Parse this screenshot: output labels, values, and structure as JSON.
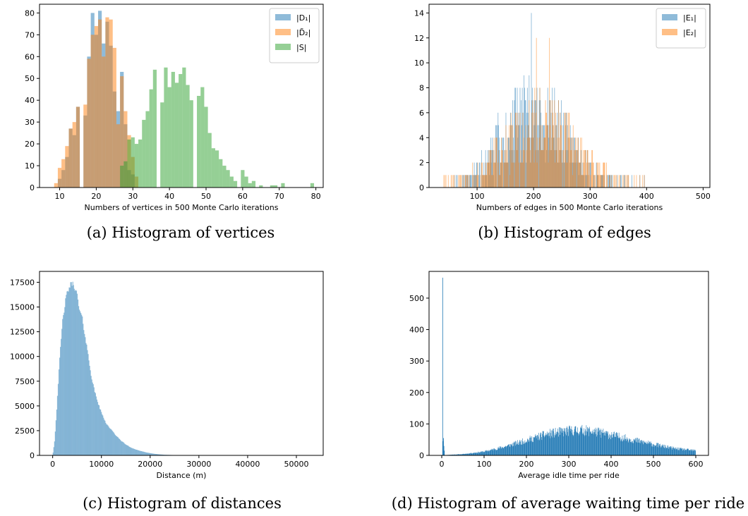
{
  "colors": {
    "blue": "#1f77b4",
    "orange": "#ff7f0e",
    "green": "#2ca02c"
  },
  "captions": [
    "(a) Histogram of vertices",
    "(b) Histogram of edges",
    "(c) Histogram of distances",
    "(d) Histogram of average waiting time per ride"
  ],
  "chart_data": [
    {
      "type": "bar",
      "subtype": "histogram-overlay",
      "xlabel": "Numbers of vertices in 500 Monte Carlo iterations",
      "ylabel": "",
      "xlim": [
        4.5,
        82
      ],
      "ylim": [
        0,
        84
      ],
      "xticks": [
        10,
        20,
        30,
        40,
        50,
        60,
        70,
        80
      ],
      "yticks": [
        0,
        10,
        20,
        30,
        40,
        50,
        60,
        70,
        80
      ],
      "legend_position": "top-right",
      "series": [
        {
          "name": "|D1|",
          "legend_label": "|D₁|",
          "color": "#1f77b4",
          "alpha": 0.5,
          "bin_width": 1,
          "x": [
            10,
            11,
            12,
            13,
            14,
            15,
            16,
            17,
            18,
            19,
            20,
            21,
            22,
            23,
            24,
            25,
            26,
            27,
            28,
            29,
            30
          ],
          "values": [
            4,
            8,
            14,
            27,
            24,
            37,
            0,
            33,
            60,
            80,
            70,
            81,
            66,
            76,
            65,
            44,
            35,
            53,
            29,
            8,
            6
          ]
        },
        {
          "name": "|D̃2|",
          "legend_label": "|D̃₂|",
          "color": "#ff7f0e",
          "alpha": 0.5,
          "bin_width": 1,
          "x": [
            9,
            10,
            11,
            12,
            13,
            14,
            15,
            16,
            17,
            18,
            19,
            20,
            21,
            22,
            23,
            24,
            25,
            26,
            27,
            28,
            29,
            30,
            31
          ],
          "values": [
            2,
            9,
            13,
            19,
            27,
            30,
            37,
            0,
            38,
            59,
            70,
            74,
            77,
            60,
            78,
            77,
            64,
            29,
            51,
            35,
            24,
            14,
            5
          ]
        },
        {
          "name": "|S|",
          "legend_label": "|S|",
          "color": "#2ca02c",
          "alpha": 0.5,
          "bin_width": 1,
          "x": [
            27,
            28,
            29,
            30,
            31,
            32,
            33,
            34,
            35,
            36,
            37,
            38,
            39,
            40,
            41,
            42,
            43,
            44,
            45,
            46,
            47,
            48,
            49,
            50,
            51,
            52,
            53,
            54,
            55,
            56,
            57,
            58,
            59,
            60,
            61,
            62,
            63,
            64,
            65,
            66,
            67,
            68,
            69,
            70,
            71,
            72,
            73,
            74,
            75,
            76,
            77,
            78,
            79,
            80
          ],
          "values": [
            10,
            12,
            22,
            23,
            20,
            22,
            31,
            35,
            45,
            54,
            0,
            39,
            55,
            46,
            53,
            48,
            52,
            55,
            47,
            40,
            0,
            42,
            46,
            37,
            25,
            18,
            17,
            13,
            10,
            8,
            5,
            3,
            0,
            8,
            5,
            2,
            3,
            0,
            1,
            0,
            0,
            1,
            1,
            0,
            2,
            0,
            0,
            0,
            0,
            0,
            0,
            0,
            2,
            0
          ]
        }
      ]
    },
    {
      "type": "bar",
      "subtype": "histogram-overlay",
      "xlabel": "Numbers of edges in 500 Monte Carlo iterations",
      "ylabel": "",
      "xlim": [
        15,
        512
      ],
      "ylim": [
        0,
        14.7
      ],
      "xticks": [
        100,
        200,
        300,
        400,
        500
      ],
      "yticks": [
        0,
        2,
        4,
        6,
        8,
        10,
        12,
        14
      ],
      "legend_position": "top-right",
      "series": [
        {
          "name": "|E1|",
          "legend_label": "|E₁|",
          "color": "#1f77b4",
          "alpha": 0.5,
          "bin_width": 1,
          "distribution": "approximately normal, center ~200, spread ~60, range ~60–480",
          "notable_values": [
            {
              "x": 196,
              "count": 14
            }
          ]
        },
        {
          "name": "|E2|",
          "legend_label": "|E₂|",
          "color": "#ff7f0e",
          "alpha": 0.5,
          "bin_width": 1,
          "distribution": "approximately normal, center ~210, spread ~65, range ~40–490",
          "notable_values": [
            {
              "x": 205,
              "count": 12
            },
            {
              "x": 228,
              "count": 12
            }
          ]
        }
      ]
    },
    {
      "type": "bar",
      "subtype": "histogram",
      "xlabel": "Distance (m)",
      "ylabel": "",
      "xlim": [
        -2700,
        55500
      ],
      "ylim": [
        0,
        18600
      ],
      "xticks": [
        0,
        10000,
        20000,
        30000,
        40000,
        50000
      ],
      "yticks": [
        0,
        2500,
        5000,
        7500,
        10000,
        12500,
        15000,
        17500
      ],
      "color": "#1f77b4",
      "alpha": 0.5,
      "profile_x": [
        0,
        400,
        800,
        1200,
        1600,
        2000,
        2500,
        3000,
        3500,
        4000,
        4500,
        5000,
        5500,
        6000,
        6500,
        7000,
        7500,
        8000,
        8500,
        9000,
        9500,
        10000,
        11000,
        12000,
        13000,
        14000,
        15000,
        16000,
        17000,
        18000,
        19000,
        20000,
        21000,
        22000,
        23000,
        25000,
        30000,
        53000
      ],
      "profile_y": [
        0,
        1500,
        4500,
        8000,
        11000,
        13500,
        15300,
        16500,
        17100,
        17400,
        17100,
        16200,
        14600,
        14000,
        12500,
        11000,
        9400,
        7800,
        6700,
        5800,
        5000,
        4300,
        3200,
        2600,
        2000,
        1500,
        1100,
        800,
        600,
        450,
        320,
        220,
        150,
        100,
        60,
        30,
        5,
        0
      ]
    },
    {
      "type": "bar",
      "subtype": "histogram",
      "xlabel": "Average idle time per ride",
      "ylabel": "",
      "xlim": [
        -30,
        630
      ],
      "ylim": [
        0,
        585
      ],
      "xticks": [
        0,
        100,
        200,
        300,
        400,
        500,
        600
      ],
      "yticks": [
        0,
        100,
        200,
        300,
        400,
        500
      ],
      "color": "#1f77b4",
      "alpha": 1.0,
      "spike": [
        {
          "x": 2,
          "count": 565
        },
        {
          "x": 3,
          "count": 45
        },
        {
          "x": 4,
          "count": 55
        },
        {
          "x": 5,
          "count": 30
        },
        {
          "x": 6,
          "count": 15
        }
      ],
      "profile_x": [
        0,
        20,
        50,
        100,
        150,
        200,
        250,
        300,
        330,
        360,
        400,
        450,
        500,
        550,
        600
      ],
      "profile_y": [
        0,
        2,
        4,
        12,
        28,
        48,
        68,
        78,
        80,
        76,
        65,
        50,
        35,
        22,
        15
      ]
    }
  ]
}
